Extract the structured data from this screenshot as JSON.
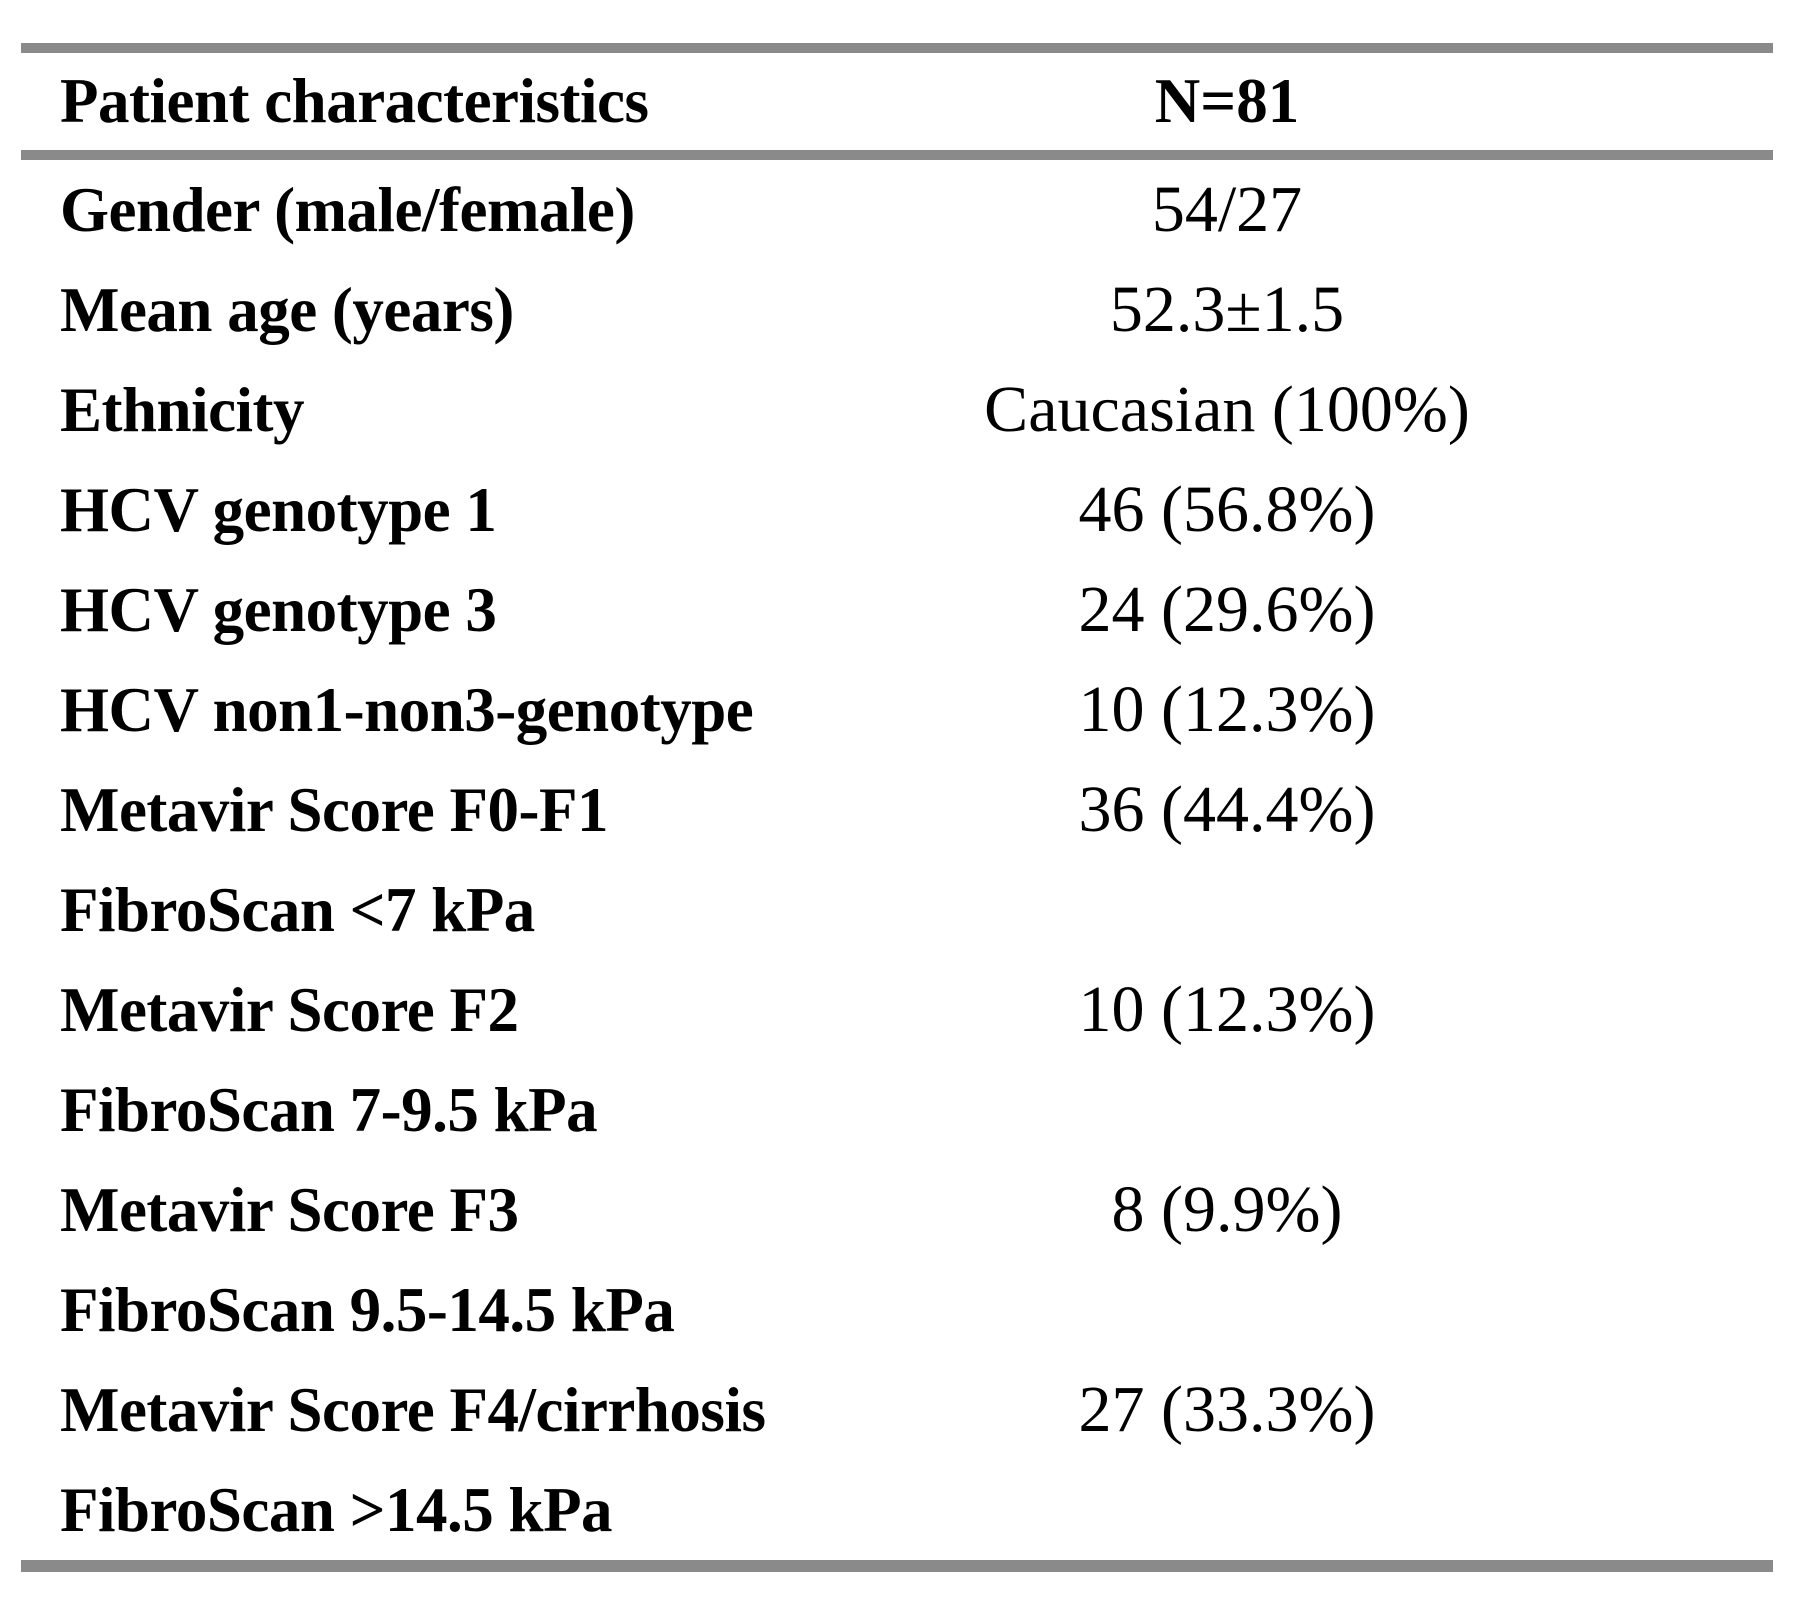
{
  "table": {
    "title_note": "Patient characteristics table",
    "colors": {
      "rule_gray": "#8a8a8a",
      "text": "#000000",
      "background": "#ffffff"
    },
    "header": {
      "label": "Patient characteristics",
      "value": "N=81"
    },
    "rows": [
      {
        "label": "Gender (male/female)",
        "value": "54/27"
      },
      {
        "label": "Mean age (years)",
        "value": "52.3±1.5"
      },
      {
        "label": "Ethnicity",
        "value": "Caucasian (100%)"
      },
      {
        "label": "HCV genotype 1",
        "value": "46 (56.8%)"
      },
      {
        "label": "HCV genotype 3",
        "value": "24 (29.6%)"
      },
      {
        "label": "HCV non1-non3-genotype",
        "value": "10 (12.3%)"
      },
      {
        "label": "Metavir Score F0-F1",
        "value": "36 (44.4%)"
      },
      {
        "label": "FibroScan <7 kPa",
        "value": ""
      },
      {
        "label": "Metavir Score F2",
        "value": "10 (12.3%)"
      },
      {
        "label": "FibroScan 7-9.5 kPa",
        "value": ""
      },
      {
        "label": "Metavir Score F3",
        "value": "8 (9.9%)"
      },
      {
        "label": "FibroScan 9.5-14.5 kPa",
        "value": ""
      },
      {
        "label": "Metavir Score F4/cirrhosis",
        "value": "27 (33.3%)"
      },
      {
        "label": "FibroScan >14.5 kPa",
        "value": ""
      }
    ]
  },
  "chart_data": {
    "type": "table",
    "title": "Patient characteristics",
    "columns": [
      "Patient characteristics",
      "N=81"
    ],
    "rows": [
      [
        "Gender (male/female)",
        "54/27"
      ],
      [
        "Mean age (years)",
        "52.3±1.5"
      ],
      [
        "Ethnicity",
        "Caucasian (100%)"
      ],
      [
        "HCV genotype 1",
        "46 (56.8%)"
      ],
      [
        "HCV genotype 3",
        "24 (29.6%)"
      ],
      [
        "HCV non1-non3-genotype",
        "10 (12.3%)"
      ],
      [
        "Metavir Score F0-F1 FibroScan <7 kPa",
        "36 (44.4%)"
      ],
      [
        "Metavir Score F2 FibroScan 7-9.5 kPa",
        "10 (12.3%)"
      ],
      [
        "Metavir Score F3 FibroScan 9.5-14.5 kPa",
        "8 (9.9%)"
      ],
      [
        "Metavir Score F4/cirrhosis FibroScan >14.5 kPa",
        "27 (33.3%)"
      ]
    ]
  }
}
